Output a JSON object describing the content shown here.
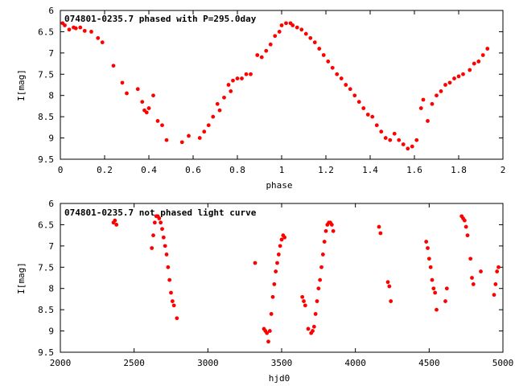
{
  "chart_data": [
    {
      "type": "scatter",
      "title": "074801-0235.7 phased with P=295.0day",
      "xlabel": "phase",
      "ylabel": "I[mag]",
      "xlim": [
        0,
        2
      ],
      "ylim": [
        9.5,
        6
      ],
      "y_inverted": true,
      "grid": false,
      "marker_color": "#ff0000",
      "x_ticks": [
        "0",
        "0.2",
        "0.4",
        "0.6",
        "0.8",
        "1",
        "1.2",
        "1.4",
        "1.6",
        "1.8",
        "2"
      ],
      "y_ticks": [
        "6",
        "6.5",
        "7",
        "7.5",
        "8",
        "8.5",
        "9",
        "9.5"
      ],
      "series": [
        {
          "x": [
            0.01,
            0.02,
            0.04,
            0.06,
            0.07,
            0.09,
            0.11,
            0.14,
            0.17,
            0.19,
            0.24,
            0.28,
            0.3,
            0.35,
            0.37,
            0.38,
            0.39,
            0.4,
            0.42,
            0.44,
            0.46,
            0.48,
            0.55,
            0.58,
            0.63,
            0.65,
            0.67,
            0.69,
            0.71,
            0.72,
            0.74,
            0.76,
            0.77,
            0.78,
            0.8,
            0.82,
            0.84,
            0.86,
            0.89,
            0.91,
            0.93,
            0.95,
            0.97,
            0.99,
            1.0,
            1.02,
            1.04,
            1.05,
            1.07,
            1.09,
            1.11,
            1.13,
            1.15,
            1.17,
            1.19,
            1.21,
            1.23,
            1.25,
            1.27,
            1.29,
            1.31,
            1.33,
            1.35,
            1.37,
            1.39,
            1.41,
            1.43,
            1.45,
            1.47,
            1.49,
            1.51,
            1.53,
            1.55,
            1.57,
            1.59,
            1.61,
            1.63,
            1.64,
            1.66,
            1.68,
            1.7,
            1.72,
            1.74,
            1.76,
            1.78,
            1.8,
            1.82,
            1.85,
            1.87,
            1.89,
            1.91,
            1.93
          ],
          "y": [
            6.3,
            6.35,
            6.45,
            6.4,
            6.42,
            6.4,
            6.48,
            6.5,
            6.65,
            6.75,
            7.3,
            7.7,
            7.95,
            7.85,
            8.15,
            8.35,
            8.4,
            8.3,
            8.0,
            8.6,
            8.7,
            9.05,
            9.1,
            8.95,
            9.0,
            8.85,
            8.7,
            8.5,
            8.2,
            8.35,
            8.05,
            7.75,
            7.9,
            7.65,
            7.6,
            7.6,
            7.5,
            7.5,
            7.05,
            7.1,
            6.95,
            6.8,
            6.6,
            6.5,
            6.35,
            6.3,
            6.3,
            6.35,
            6.4,
            6.45,
            6.55,
            6.65,
            6.75,
            6.9,
            7.05,
            7.2,
            7.35,
            7.5,
            7.6,
            7.75,
            7.85,
            8.0,
            8.15,
            8.3,
            8.45,
            8.5,
            8.7,
            8.85,
            9.0,
            9.05,
            8.9,
            9.05,
            9.15,
            9.25,
            9.2,
            9.05,
            8.3,
            8.1,
            8.6,
            8.2,
            8.0,
            7.9,
            7.75,
            7.7,
            7.6,
            7.55,
            7.5,
            7.4,
            7.25,
            7.2,
            7.05,
            6.9
          ],
          "labels": []
        }
      ],
      "labels": []
    },
    {
      "type": "scatter",
      "title": "074801-0235.7 not phased light curve",
      "xlabel": "hjd0",
      "ylabel": "I[mag]",
      "xlim": [
        2000,
        5000
      ],
      "ylim": [
        9.5,
        6
      ],
      "y_inverted": true,
      "grid": false,
      "marker_color": "#ff0000",
      "x_ticks": [
        "2000",
        "2500",
        "3000",
        "3500",
        "4000",
        "4500",
        "5000"
      ],
      "y_ticks": [
        "6",
        "6.5",
        "7",
        "7.5",
        "8",
        "8.5",
        "9",
        "9.5"
      ],
      "series": [
        {
          "x": [
            2360,
            2370,
            2380,
            2620,
            2630,
            2640,
            2650,
            2660,
            2670,
            2680,
            2690,
            2700,
            2710,
            2720,
            2730,
            2740,
            2750,
            2760,
            2770,
            2790,
            3320,
            3380,
            3390,
            3400,
            3410,
            3420,
            3430,
            3440,
            3450,
            3460,
            3470,
            3480,
            3490,
            3500,
            3510,
            3520,
            3640,
            3650,
            3660,
            3680,
            3700,
            3710,
            3720,
            3730,
            3740,
            3750,
            3760,
            3770,
            3780,
            3790,
            3800,
            3810,
            3820,
            3830,
            3840,
            3850,
            4160,
            4170,
            4220,
            4230,
            4240,
            4480,
            4490,
            4500,
            4510,
            4520,
            4530,
            4540,
            4550,
            4610,
            4620,
            4720,
            4730,
            4740,
            4750,
            4760,
            4780,
            4790,
            4800,
            4850,
            4940,
            4950,
            4960,
            4970
          ],
          "y": [
            6.45,
            6.4,
            6.5,
            7.05,
            6.75,
            6.45,
            6.3,
            6.3,
            6.35,
            6.45,
            6.6,
            6.8,
            7.0,
            7.2,
            7.5,
            7.8,
            8.1,
            8.3,
            8.4,
            8.7,
            7.4,
            8.95,
            9.0,
            9.05,
            9.25,
            9.0,
            8.6,
            8.2,
            7.9,
            7.6,
            7.4,
            7.2,
            7.0,
            6.85,
            6.75,
            6.8,
            8.2,
            8.3,
            8.4,
            8.95,
            9.05,
            9.0,
            8.9,
            8.6,
            8.3,
            8.0,
            7.8,
            7.5,
            7.2,
            6.9,
            6.65,
            6.5,
            6.45,
            6.45,
            6.5,
            6.65,
            6.55,
            6.7,
            7.85,
            7.95,
            8.3,
            6.9,
            7.05,
            7.3,
            7.5,
            7.8,
            8.0,
            8.1,
            8.5,
            8.3,
            8.0,
            6.3,
            6.35,
            6.4,
            6.55,
            6.75,
            7.3,
            7.75,
            7.9,
            7.6,
            8.15,
            7.9,
            7.6,
            7.5
          ],
          "labels": []
        }
      ],
      "labels": []
    }
  ]
}
